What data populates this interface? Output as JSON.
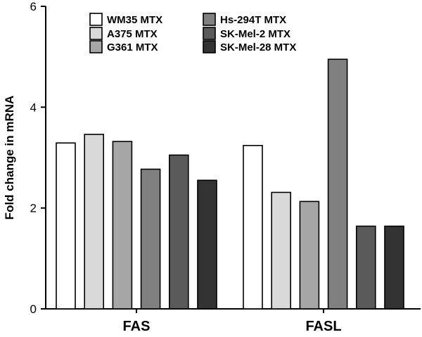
{
  "chart_data": {
    "type": "bar",
    "title": "",
    "xlabel": "",
    "ylabel": "Fold change in mRNA",
    "ylim": [
      0,
      6
    ],
    "yticks": [
      0,
      2,
      4,
      6
    ],
    "grid": false,
    "legend_position": "top-left",
    "categories": [
      "FAS",
      "FASL"
    ],
    "series": [
      {
        "name": "WM35 MTX",
        "color": "#ffffff",
        "values": [
          3.29,
          3.24
        ]
      },
      {
        "name": "A375 MTX",
        "color": "#d9d9d9",
        "values": [
          3.46,
          2.31
        ]
      },
      {
        "name": "G361 MTX",
        "color": "#a6a6a6",
        "values": [
          3.32,
          2.13
        ]
      },
      {
        "name": "Hs-294T MTX",
        "color": "#808080",
        "values": [
          2.77,
          4.95
        ]
      },
      {
        "name": "SK-Mel-2 MTX",
        "color": "#5a5a5a",
        "values": [
          3.05,
          1.64
        ]
      },
      {
        "name": "SK-Mel-28 MTX",
        "color": "#333333",
        "values": [
          2.55,
          1.64
        ]
      }
    ]
  }
}
